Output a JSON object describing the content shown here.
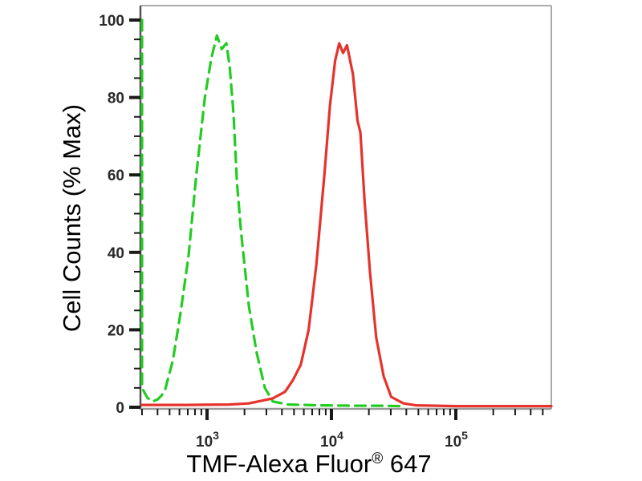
{
  "figure": {
    "background": "#ffffff"
  },
  "chart_data": {
    "type": "line",
    "subtype": "flow-cytometry-histogram-overlay",
    "title": "",
    "xlabel": "TMF-Alexa Fluor® 647",
    "xlabel_parts": {
      "main": "TMF-Alexa Fluor",
      "sup": "®",
      "suffix": " 647"
    },
    "ylabel": "Cell Counts (% Max)",
    "x_scale": "log",
    "x_range": [
      290,
      590000
    ],
    "x_major_ticks": [
      1000,
      10000,
      100000
    ],
    "x_tick_label_base": "10",
    "x_tick_label_exponents": [
      "3",
      "4",
      "5"
    ],
    "ylim": [
      0,
      100
    ],
    "y_major_ticks": [
      0,
      20,
      40,
      60,
      80,
      100
    ],
    "y_minor_tick_step": 5,
    "grid": false,
    "legend": null,
    "colors": {
      "frame_top_right": "#aaaaaa",
      "axis_left": "#555555",
      "axis_bottom": "#999999",
      "tick": "#1a1a1a",
      "tick_label": "#2a2a2a",
      "axis_label": "#000000",
      "green_series": "#22cc22",
      "red_series": "#e5332c"
    },
    "series": [
      {
        "name": "negative-control-green-dashed",
        "color": "#22cc22",
        "line_style": "dashed",
        "peak": {
          "x": 1200,
          "y_pct": 96
        },
        "points": [
          [
            300,
            100
          ],
          [
            300,
            5
          ],
          [
            330,
            2.5
          ],
          [
            365,
            1.5
          ],
          [
            400,
            2
          ],
          [
            430,
            3
          ],
          [
            460,
            4.5
          ],
          [
            530,
            12
          ],
          [
            610,
            24
          ],
          [
            710,
            39
          ],
          [
            820,
            60
          ],
          [
            960,
            80
          ],
          [
            1080,
            90
          ],
          [
            1200,
            96
          ],
          [
            1310,
            92.5
          ],
          [
            1430,
            94
          ],
          [
            1520,
            88
          ],
          [
            1630,
            76
          ],
          [
            1740,
            58
          ],
          [
            1880,
            45
          ],
          [
            2170,
            26
          ],
          [
            2510,
            14
          ],
          [
            2920,
            5
          ],
          [
            3380,
            1.5
          ],
          [
            4500,
            0.7
          ],
          [
            8000,
            0.5
          ],
          [
            15000,
            0.4
          ],
          [
            25000,
            0.4
          ],
          [
            36000,
            0.3
          ]
        ]
      },
      {
        "name": "tmf-alexa-fluor-647-red-solid",
        "color": "#e5332c",
        "line_style": "solid",
        "peak": {
          "x": 12000,
          "y_pct": 94
        },
        "points": [
          [
            300,
            0.6
          ],
          [
            700,
            0.6
          ],
          [
            1500,
            0.7
          ],
          [
            2170,
            1
          ],
          [
            3380,
            2.3
          ],
          [
            4240,
            4
          ],
          [
            4900,
            7
          ],
          [
            5670,
            11
          ],
          [
            6560,
            20
          ],
          [
            7580,
            37
          ],
          [
            8770,
            60
          ],
          [
            9730,
            78
          ],
          [
            10700,
            89.5
          ],
          [
            11550,
            94
          ],
          [
            12400,
            91.5
          ],
          [
            13350,
            93.5
          ],
          [
            14900,
            86
          ],
          [
            16200,
            74
          ],
          [
            17100,
            71
          ],
          [
            18500,
            53
          ],
          [
            20400,
            35
          ],
          [
            22900,
            18
          ],
          [
            26300,
            8
          ],
          [
            30200,
            2.7
          ],
          [
            37900,
            1
          ],
          [
            47800,
            0.5
          ],
          [
            100000,
            0.3
          ],
          [
            300000,
            0.3
          ],
          [
            586000,
            0.3
          ]
        ]
      }
    ]
  }
}
